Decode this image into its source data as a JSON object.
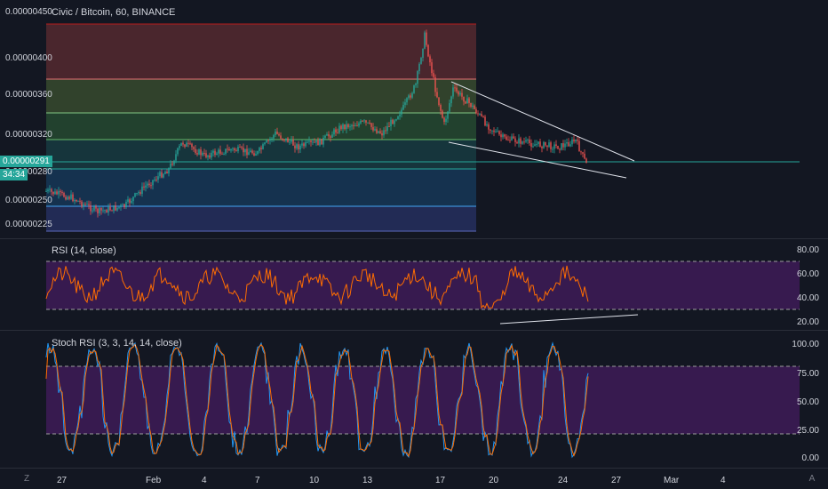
{
  "colors": {
    "bg": "#131722",
    "up": "#26a69a",
    "down": "#ef5350",
    "rsi": "#ff6d00",
    "stoch_k": "#2196f3",
    "stoch_d": "#ff6d00",
    "band": "#7b1fa2"
  },
  "main": {
    "title": "Civic / Bitcoin, 60, BINANCE",
    "price_axis": [
      "0.00000450",
      "0.00000400",
      "0.00000360",
      "0.00000320",
      "0.00000280",
      "0.00000250",
      "0.00000225"
    ],
    "current_price": "0.00000291",
    "countdown": "34:34"
  },
  "rsi": {
    "title": "RSI (14, close)",
    "axis": [
      "80.00",
      "60.00",
      "40.00",
      "20.00"
    ]
  },
  "stoch": {
    "title": "Stoch RSI (3, 3, 14, 14, close)",
    "axis": [
      "100.00",
      "75.00",
      "50.00",
      "25.00",
      "0.00"
    ]
  },
  "time_axis": [
    "27",
    "Feb",
    "4",
    "7",
    "10",
    "13",
    "17",
    "20",
    "24",
    "27",
    "Mar",
    "4"
  ],
  "footer": {
    "left_icon_text": "Z",
    "right_icon_text": "A"
  }
}
